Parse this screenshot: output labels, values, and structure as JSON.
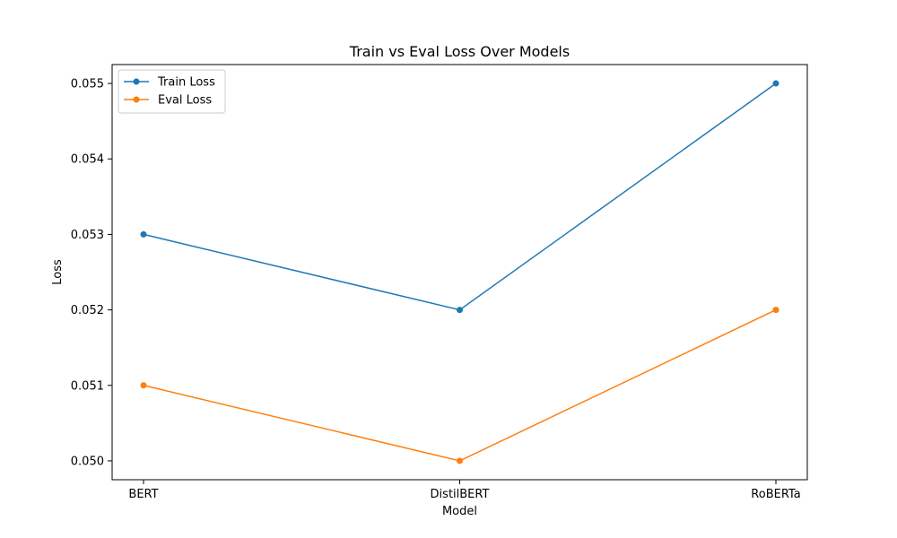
{
  "chart_data": {
    "type": "line",
    "title": "Train vs Eval Loss Over Models",
    "xlabel": "Model",
    "ylabel": "Loss",
    "categories": [
      "BERT",
      "DistilBERT",
      "RoBERTa"
    ],
    "series": [
      {
        "name": "Train Loss",
        "values": [
          0.053,
          0.052,
          0.055
        ],
        "color": "#1f77b4"
      },
      {
        "name": "Eval Loss",
        "values": [
          0.051,
          0.05,
          0.052
        ],
        "color": "#ff7f0e"
      }
    ],
    "ylim": [
      0.04975,
      0.05525
    ],
    "yticks": [
      0.05,
      0.051,
      0.052,
      0.053,
      0.054,
      0.055
    ],
    "ytick_labels": [
      "0.050",
      "0.051",
      "0.052",
      "0.053",
      "0.054",
      "0.055"
    ],
    "legend": "top-left",
    "grid": false,
    "markers": "circle"
  }
}
